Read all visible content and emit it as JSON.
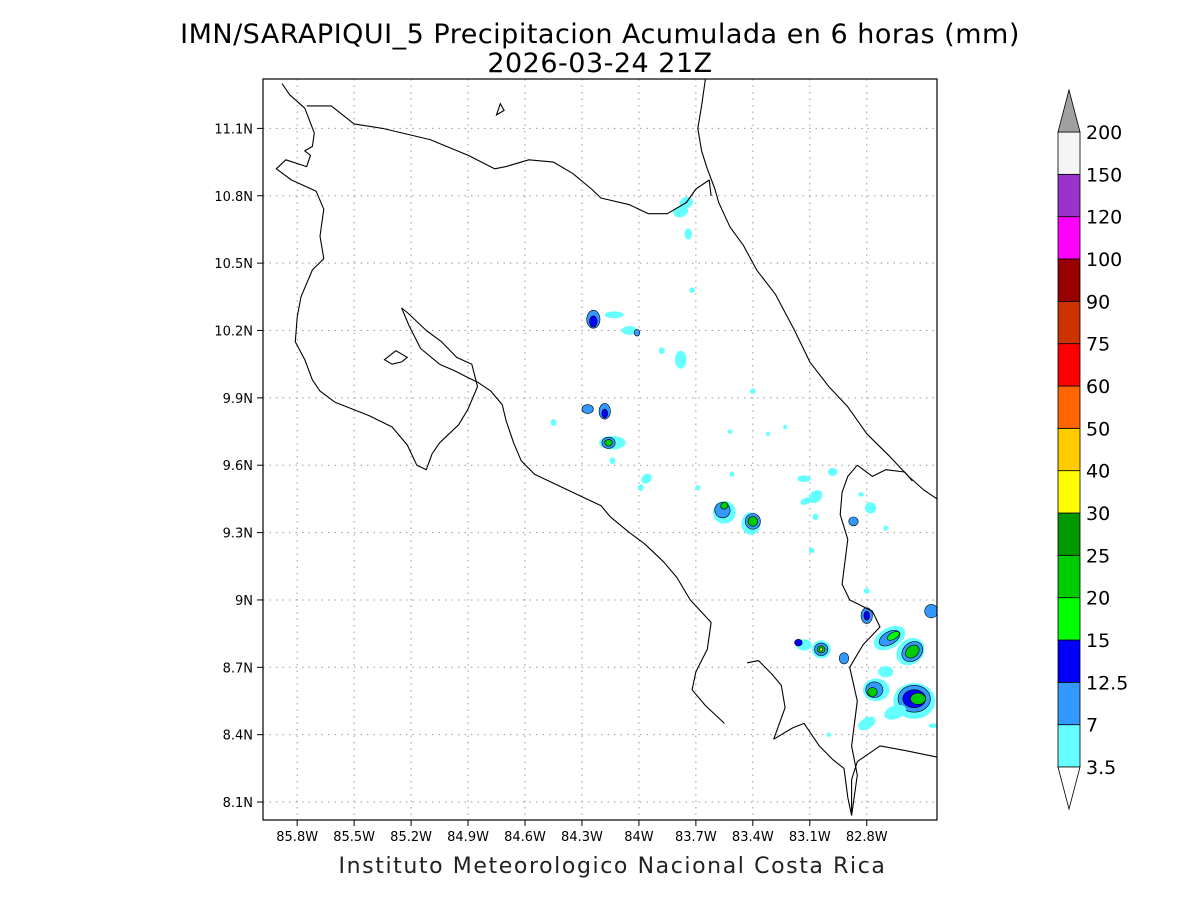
{
  "title": {
    "line1": "IMN/SARAPIQUI_5 Precipitacion Acumulada en 6 horas (mm)",
    "line2": "2026-03-24 21Z"
  },
  "credit": "Instituto Meteorologico Nacional Costa Rica",
  "map": {
    "lon_range": [
      -85.98,
      -82.43
    ],
    "lat_range": [
      8.02,
      11.32
    ],
    "grid": true,
    "lon_ticks": [
      {
        "value": -85.8,
        "label": "85.8W"
      },
      {
        "value": -85.5,
        "label": "85.5W"
      },
      {
        "value": -85.2,
        "label": "85.2W"
      },
      {
        "value": -84.9,
        "label": "84.9W"
      },
      {
        "value": -84.6,
        "label": "84.6W"
      },
      {
        "value": -84.3,
        "label": "84.3W"
      },
      {
        "value": -84.0,
        "label": "84W"
      },
      {
        "value": -83.7,
        "label": "83.7W"
      },
      {
        "value": -83.4,
        "label": "83.4W"
      },
      {
        "value": -83.1,
        "label": "83.1W"
      },
      {
        "value": -82.8,
        "label": "82.8W"
      }
    ],
    "lat_ticks": [
      {
        "value": 11.1,
        "label": "11.1N"
      },
      {
        "value": 10.8,
        "label": "10.8N"
      },
      {
        "value": 10.5,
        "label": "10.5N"
      },
      {
        "value": 10.2,
        "label": "10.2N"
      },
      {
        "value": 9.9,
        "label": "9.9N"
      },
      {
        "value": 9.6,
        "label": "9.6N"
      },
      {
        "value": 9.3,
        "label": "9.3N"
      },
      {
        "value": 9.0,
        "label": "9N"
      },
      {
        "value": 8.7,
        "label": "8.7N"
      },
      {
        "value": 8.4,
        "label": "8.4N"
      },
      {
        "value": 8.1,
        "label": "8.1N"
      }
    ]
  },
  "colorbar": {
    "under_color": "#ffffff",
    "over_color": "#a0a0a0",
    "levels": [
      {
        "label": "3.5",
        "color": "#66ffff"
      },
      {
        "label": "7",
        "color": "#3399ff"
      },
      {
        "label": "12.5",
        "color": "#0000ff"
      },
      {
        "label": "15",
        "color": "#00ff00"
      },
      {
        "label": "20",
        "color": "#00cc00"
      },
      {
        "label": "25",
        "color": "#009900"
      },
      {
        "label": "30",
        "color": "#ffff00"
      },
      {
        "label": "40",
        "color": "#ffcc00"
      },
      {
        "label": "50",
        "color": "#ff6600"
      },
      {
        "label": "60",
        "color": "#ff0000"
      },
      {
        "label": "75",
        "color": "#cc3300"
      },
      {
        "label": "90",
        "color": "#990000"
      },
      {
        "label": "100",
        "color": "#ff00ff"
      },
      {
        "label": "120",
        "color": "#9933cc"
      },
      {
        "label": "150",
        "color": "#f5f5f5"
      },
      {
        "label": "200",
        "color": ""
      }
    ]
  },
  "precip_cells": [
    {
      "lon": -83.75,
      "lat": 10.77,
      "rx": 0.035,
      "ry": 0.025,
      "level": 0,
      "rot": -20
    },
    {
      "lon": -83.78,
      "lat": 10.73,
      "rx": 0.04,
      "ry": 0.025,
      "level": 0,
      "rot": -20
    },
    {
      "lon": -83.74,
      "lat": 10.63,
      "rx": 0.02,
      "ry": 0.025,
      "level": 0,
      "rot": 0
    },
    {
      "lon": -83.72,
      "lat": 10.38,
      "rx": 0.015,
      "ry": 0.012,
      "level": 0,
      "rot": 0
    },
    {
      "lon": -84.24,
      "lat": 10.25,
      "rx": 0.035,
      "ry": 0.04,
      "level": 1,
      "rot": 0
    },
    {
      "lon": -84.24,
      "lat": 10.24,
      "rx": 0.02,
      "ry": 0.025,
      "level": 2,
      "rot": 0
    },
    {
      "lon": -84.13,
      "lat": 10.27,
      "rx": 0.05,
      "ry": 0.015,
      "level": 0,
      "rot": 0
    },
    {
      "lon": -84.05,
      "lat": 10.2,
      "rx": 0.04,
      "ry": 0.02,
      "level": 0,
      "rot": 0
    },
    {
      "lon": -84.01,
      "lat": 10.19,
      "rx": 0.015,
      "ry": 0.015,
      "level": 1,
      "rot": 0
    },
    {
      "lon": -83.78,
      "lat": 10.07,
      "rx": 0.03,
      "ry": 0.04,
      "level": 0,
      "rot": 0
    },
    {
      "lon": -83.88,
      "lat": 10.11,
      "rx": 0.015,
      "ry": 0.015,
      "level": 0,
      "rot": 0
    },
    {
      "lon": -84.27,
      "lat": 9.85,
      "rx": 0.03,
      "ry": 0.02,
      "level": 1,
      "rot": 0
    },
    {
      "lon": -84.18,
      "lat": 9.84,
      "rx": 0.03,
      "ry": 0.035,
      "level": 1,
      "rot": 0
    },
    {
      "lon": -84.18,
      "lat": 9.83,
      "rx": 0.015,
      "ry": 0.02,
      "level": 2,
      "rot": 0
    },
    {
      "lon": -84.45,
      "lat": 9.79,
      "rx": 0.015,
      "ry": 0.015,
      "level": 0,
      "rot": 0
    },
    {
      "lon": -84.14,
      "lat": 9.7,
      "rx": 0.07,
      "ry": 0.03,
      "level": 0,
      "rot": 0
    },
    {
      "lon": -84.16,
      "lat": 9.7,
      "rx": 0.035,
      "ry": 0.025,
      "level": 1,
      "rot": 0
    },
    {
      "lon": -84.16,
      "lat": 9.7,
      "rx": 0.02,
      "ry": 0.015,
      "level": 4,
      "rot": 0
    },
    {
      "lon": -84.14,
      "lat": 9.62,
      "rx": 0.015,
      "ry": 0.015,
      "level": 0,
      "rot": 0
    },
    {
      "lon": -83.96,
      "lat": 9.54,
      "rx": 0.03,
      "ry": 0.02,
      "level": 0,
      "rot": -40
    },
    {
      "lon": -83.99,
      "lat": 9.5,
      "rx": 0.015,
      "ry": 0.015,
      "level": 0,
      "rot": 0
    },
    {
      "lon": -83.69,
      "lat": 9.5,
      "rx": 0.012,
      "ry": 0.012,
      "level": 0,
      "rot": 0
    },
    {
      "lon": -83.4,
      "lat": 9.93,
      "rx": 0.015,
      "ry": 0.012,
      "level": 0,
      "rot": 0
    },
    {
      "lon": -83.52,
      "lat": 9.75,
      "rx": 0.012,
      "ry": 0.01,
      "level": 0,
      "rot": 0
    },
    {
      "lon": -83.32,
      "lat": 9.74,
      "rx": 0.01,
      "ry": 0.01,
      "level": 0,
      "rot": 0
    },
    {
      "lon": -83.23,
      "lat": 9.77,
      "rx": 0.01,
      "ry": 0.01,
      "level": 0,
      "rot": 0
    },
    {
      "lon": -83.51,
      "lat": 9.56,
      "rx": 0.012,
      "ry": 0.012,
      "level": 0,
      "rot": 0
    },
    {
      "lon": -83.55,
      "lat": 9.39,
      "rx": 0.06,
      "ry": 0.05,
      "level": 0,
      "rot": -40
    },
    {
      "lon": -83.56,
      "lat": 9.4,
      "rx": 0.04,
      "ry": 0.035,
      "level": 1,
      "rot": -40
    },
    {
      "lon": -83.55,
      "lat": 9.42,
      "rx": 0.02,
      "ry": 0.015,
      "level": 4,
      "rot": -40
    },
    {
      "lon": -83.41,
      "lat": 9.34,
      "rx": 0.05,
      "ry": 0.05,
      "level": 0,
      "rot": 0
    },
    {
      "lon": -83.4,
      "lat": 9.35,
      "rx": 0.04,
      "ry": 0.035,
      "level": 1,
      "rot": 0
    },
    {
      "lon": -83.4,
      "lat": 9.35,
      "rx": 0.025,
      "ry": 0.022,
      "level": 4,
      "rot": 0
    },
    {
      "lon": -83.13,
      "lat": 9.54,
      "rx": 0.035,
      "ry": 0.015,
      "level": 0,
      "rot": 0
    },
    {
      "lon": -83.07,
      "lat": 9.46,
      "rx": 0.04,
      "ry": 0.025,
      "level": 0,
      "rot": -40
    },
    {
      "lon": -83.12,
      "lat": 9.44,
      "rx": 0.03,
      "ry": 0.015,
      "level": 0,
      "rot": -20
    },
    {
      "lon": -83.07,
      "lat": 9.37,
      "rx": 0.015,
      "ry": 0.015,
      "level": 0,
      "rot": 0
    },
    {
      "lon": -82.98,
      "lat": 9.57,
      "rx": 0.025,
      "ry": 0.018,
      "level": 0,
      "rot": 0
    },
    {
      "lon": -82.83,
      "lat": 9.47,
      "rx": 0.015,
      "ry": 0.01,
      "level": 0,
      "rot": 0
    },
    {
      "lon": -82.78,
      "lat": 9.41,
      "rx": 0.03,
      "ry": 0.025,
      "level": 0,
      "rot": 0
    },
    {
      "lon": -82.87,
      "lat": 9.35,
      "rx": 0.025,
      "ry": 0.02,
      "level": 1,
      "rot": 0
    },
    {
      "lon": -82.7,
      "lat": 9.32,
      "rx": 0.012,
      "ry": 0.012,
      "level": 0,
      "rot": 0
    },
    {
      "lon": -83.09,
      "lat": 9.22,
      "rx": 0.015,
      "ry": 0.012,
      "level": 0,
      "rot": 0
    },
    {
      "lon": -82.8,
      "lat": 9.04,
      "rx": 0.015,
      "ry": 0.012,
      "level": 0,
      "rot": 0
    },
    {
      "lon": -82.8,
      "lat": 8.93,
      "rx": 0.03,
      "ry": 0.035,
      "level": 1,
      "rot": 0
    },
    {
      "lon": -82.8,
      "lat": 8.93,
      "rx": 0.015,
      "ry": 0.02,
      "level": 2,
      "rot": 0
    },
    {
      "lon": -82.46,
      "lat": 8.95,
      "rx": 0.035,
      "ry": 0.03,
      "level": 1,
      "rot": 0
    },
    {
      "lon": -83.13,
      "lat": 8.8,
      "rx": 0.04,
      "ry": 0.025,
      "level": 0,
      "rot": 0
    },
    {
      "lon": -83.16,
      "lat": 8.81,
      "rx": 0.02,
      "ry": 0.015,
      "level": 2,
      "rot": 0
    },
    {
      "lon": -83.04,
      "lat": 8.78,
      "rx": 0.05,
      "ry": 0.04,
      "level": 0,
      "rot": 0
    },
    {
      "lon": -83.04,
      "lat": 8.78,
      "rx": 0.035,
      "ry": 0.028,
      "level": 1,
      "rot": 0
    },
    {
      "lon": -83.04,
      "lat": 8.78,
      "rx": 0.02,
      "ry": 0.016,
      "level": 4,
      "rot": 0
    },
    {
      "lon": -83.04,
      "lat": 8.78,
      "rx": 0.008,
      "ry": 0.007,
      "level": 6,
      "rot": 0
    },
    {
      "lon": -82.92,
      "lat": 8.74,
      "rx": 0.025,
      "ry": 0.025,
      "level": 1,
      "rot": 0
    },
    {
      "lon": -82.68,
      "lat": 8.83,
      "rx": 0.09,
      "ry": 0.045,
      "level": 0,
      "rot": -30
    },
    {
      "lon": -82.68,
      "lat": 8.83,
      "rx": 0.06,
      "ry": 0.028,
      "level": 1,
      "rot": -30
    },
    {
      "lon": -82.66,
      "lat": 8.84,
      "rx": 0.035,
      "ry": 0.015,
      "level": 3,
      "rot": -30
    },
    {
      "lon": -82.57,
      "lat": 8.77,
      "rx": 0.08,
      "ry": 0.055,
      "level": 0,
      "rot": -40
    },
    {
      "lon": -82.56,
      "lat": 8.77,
      "rx": 0.06,
      "ry": 0.04,
      "level": 1,
      "rot": -40
    },
    {
      "lon": -82.56,
      "lat": 8.77,
      "rx": 0.04,
      "ry": 0.025,
      "level": 4,
      "rot": -40
    },
    {
      "lon": -82.7,
      "lat": 8.68,
      "rx": 0.04,
      "ry": 0.025,
      "level": 0,
      "rot": 0
    },
    {
      "lon": -82.75,
      "lat": 8.6,
      "rx": 0.07,
      "ry": 0.05,
      "level": 0,
      "rot": 0
    },
    {
      "lon": -82.76,
      "lat": 8.6,
      "rx": 0.045,
      "ry": 0.035,
      "level": 1,
      "rot": 0
    },
    {
      "lon": -82.77,
      "lat": 8.59,
      "rx": 0.025,
      "ry": 0.02,
      "level": 4,
      "rot": 0
    },
    {
      "lon": -82.55,
      "lat": 8.55,
      "rx": 0.11,
      "ry": 0.08,
      "level": 0,
      "rot": 0
    },
    {
      "lon": -82.55,
      "lat": 8.56,
      "rx": 0.085,
      "ry": 0.06,
      "level": 1,
      "rot": 0
    },
    {
      "lon": -82.55,
      "lat": 8.56,
      "rx": 0.06,
      "ry": 0.04,
      "level": 2,
      "rot": 0
    },
    {
      "lon": -82.53,
      "lat": 8.56,
      "rx": 0.04,
      "ry": 0.025,
      "level": 4,
      "rot": 0
    },
    {
      "lon": -82.65,
      "lat": 8.5,
      "rx": 0.06,
      "ry": 0.03,
      "level": 0,
      "rot": -20
    },
    {
      "lon": -82.8,
      "lat": 8.45,
      "rx": 0.05,
      "ry": 0.025,
      "level": 0,
      "rot": -30
    },
    {
      "lon": -82.45,
      "lat": 8.44,
      "rx": 0.025,
      "ry": 0.01,
      "level": 0,
      "rot": 0
    },
    {
      "lon": -83.0,
      "lat": 8.4,
      "rx": 0.012,
      "ry": 0.01,
      "level": 0,
      "rot": 0
    }
  ],
  "coastlines": [
    [
      [
        -85.88,
        11.3
      ],
      [
        -85.84,
        11.25
      ],
      [
        -85.76,
        11.19
      ],
      [
        -85.71,
        11.08
      ],
      [
        -85.72,
        11.02
      ],
      [
        -85.76,
        11.0
      ],
      [
        -85.73,
        10.98
      ],
      [
        -85.75,
        10.93
      ],
      [
        -85.86,
        10.96
      ],
      [
        -85.91,
        10.92
      ],
      [
        -85.83,
        10.87
      ],
      [
        -85.7,
        10.82
      ],
      [
        -85.66,
        10.74
      ],
      [
        -85.68,
        10.62
      ],
      [
        -85.66,
        10.52
      ],
      [
        -85.72,
        10.47
      ],
      [
        -85.78,
        10.35
      ],
      [
        -85.8,
        10.26
      ],
      [
        -85.81,
        10.15
      ],
      [
        -85.76,
        10.07
      ],
      [
        -85.72,
        9.98
      ],
      [
        -85.68,
        9.93
      ],
      [
        -85.6,
        9.88
      ],
      [
        -85.42,
        9.82
      ],
      [
        -85.3,
        9.77
      ],
      [
        -85.22,
        9.69
      ],
      [
        -85.17,
        9.6
      ],
      [
        -85.12,
        9.58
      ],
      [
        -85.09,
        9.65
      ],
      [
        -85.05,
        9.7
      ],
      [
        -84.95,
        9.78
      ],
      [
        -84.9,
        9.85
      ],
      [
        -84.85,
        9.95
      ],
      [
        -84.88,
        10.05
      ],
      [
        -84.96,
        10.08
      ],
      [
        -85.04,
        10.15
      ],
      [
        -85.12,
        10.2
      ],
      [
        -85.22,
        10.28
      ],
      [
        -85.25,
        10.3
      ]
    ],
    [
      [
        -85.25,
        10.3
      ],
      [
        -85.21,
        10.22
      ],
      [
        -85.15,
        10.12
      ],
      [
        -85.05,
        10.05
      ],
      [
        -84.97,
        10.02
      ],
      [
        -84.9,
        9.99
      ],
      [
        -84.85,
        9.97
      ],
      [
        -84.78,
        9.93
      ],
      [
        -84.72,
        9.87
      ],
      [
        -84.7,
        9.8
      ],
      [
        -84.66,
        9.7
      ],
      [
        -84.62,
        9.62
      ],
      [
        -84.55,
        9.56
      ],
      [
        -84.45,
        9.52
      ],
      [
        -84.3,
        9.46
      ],
      [
        -84.2,
        9.42
      ],
      [
        -84.15,
        9.37
      ],
      [
        -84.05,
        9.3
      ],
      [
        -83.97,
        9.25
      ],
      [
        -83.87,
        9.17
      ],
      [
        -83.8,
        9.1
      ],
      [
        -83.73,
        9.0
      ],
      [
        -83.62,
        8.9
      ],
      [
        -83.64,
        8.78
      ],
      [
        -83.7,
        8.68
      ],
      [
        -83.72,
        8.6
      ],
      [
        -83.65,
        8.53
      ],
      [
        -83.55,
        8.45
      ]
    ],
    [
      [
        -83.43,
        8.72
      ],
      [
        -83.37,
        8.73
      ],
      [
        -83.3,
        8.67
      ],
      [
        -83.25,
        8.62
      ],
      [
        -83.23,
        8.52
      ],
      [
        -83.26,
        8.45
      ],
      [
        -83.29,
        8.38
      ]
    ],
    [
      [
        -83.29,
        8.38
      ],
      [
        -83.19,
        8.43
      ],
      [
        -83.13,
        8.45
      ],
      [
        -83.05,
        8.35
      ],
      [
        -82.98,
        8.29
      ],
      [
        -82.92,
        8.25
      ],
      [
        -82.9,
        8.12
      ],
      [
        -82.88,
        8.04
      ]
    ],
    [
      [
        -82.88,
        8.04
      ],
      [
        -82.88,
        8.2
      ],
      [
        -82.85,
        8.28
      ],
      [
        -82.73,
        8.35
      ],
      [
        -82.6,
        8.33
      ],
      [
        -82.43,
        8.3
      ]
    ],
    [
      [
        -83.65,
        11.32
      ],
      [
        -83.67,
        11.2
      ],
      [
        -83.69,
        11.1
      ],
      [
        -83.67,
        11.0
      ],
      [
        -83.64,
        10.92
      ],
      [
        -83.6,
        10.83
      ],
      [
        -83.58,
        10.77
      ],
      [
        -83.52,
        10.66
      ],
      [
        -83.45,
        10.58
      ],
      [
        -83.38,
        10.47
      ],
      [
        -83.28,
        10.36
      ],
      [
        -83.18,
        10.2
      ],
      [
        -83.1,
        10.06
      ],
      [
        -83.0,
        9.95
      ],
      [
        -82.9,
        9.86
      ],
      [
        -82.8,
        9.74
      ],
      [
        -82.68,
        9.64
      ],
      [
        -82.58,
        9.55
      ],
      [
        -82.5,
        9.49
      ],
      [
        -82.43,
        9.45
      ]
    ]
  ],
  "borders": [
    [
      [
        -85.75,
        11.2
      ],
      [
        -85.62,
        11.2
      ],
      [
        -85.5,
        11.12
      ],
      [
        -85.35,
        11.1
      ],
      [
        -85.1,
        11.05
      ],
      [
        -84.9,
        10.98
      ],
      [
        -84.76,
        10.92
      ],
      [
        -84.7,
        10.93
      ],
      [
        -84.58,
        10.96
      ],
      [
        -84.45,
        10.95
      ],
      [
        -84.35,
        10.9
      ],
      [
        -84.25,
        10.83
      ],
      [
        -84.2,
        10.79
      ],
      [
        -84.05,
        10.76
      ],
      [
        -83.95,
        10.72
      ],
      [
        -83.85,
        10.72
      ],
      [
        -83.75,
        10.77
      ],
      [
        -83.7,
        10.83
      ],
      [
        -83.63,
        10.87
      ],
      [
        -83.62,
        10.8
      ]
    ],
    [
      [
        -82.56,
        9.53
      ],
      [
        -82.6,
        9.57
      ],
      [
        -82.7,
        9.58
      ],
      [
        -82.77,
        9.55
      ],
      [
        -82.85,
        9.6
      ],
      [
        -82.9,
        9.55
      ],
      [
        -82.93,
        9.48
      ],
      [
        -82.94,
        9.38
      ],
      [
        -82.9,
        9.27
      ],
      [
        -82.93,
        9.07
      ],
      [
        -82.89,
        9.0
      ],
      [
        -82.77,
        8.95
      ],
      [
        -82.73,
        8.88
      ],
      [
        -82.82,
        8.8
      ],
      [
        -82.89,
        8.7
      ],
      [
        -82.85,
        8.55
      ],
      [
        -82.88,
        8.35
      ],
      [
        -82.85,
        8.22
      ],
      [
        -82.88,
        8.04
      ]
    ]
  ],
  "lakes": [
    [
      [
        -85.3,
        10.05
      ],
      [
        -85.34,
        10.07
      ],
      [
        -85.28,
        10.11
      ],
      [
        -85.22,
        10.08
      ],
      [
        -85.25,
        10.06
      ],
      [
        -85.3,
        10.05
      ]
    ],
    [
      [
        -84.75,
        11.16
      ],
      [
        -84.73,
        11.21
      ],
      [
        -84.71,
        11.18
      ],
      [
        -84.75,
        11.16
      ]
    ]
  ]
}
